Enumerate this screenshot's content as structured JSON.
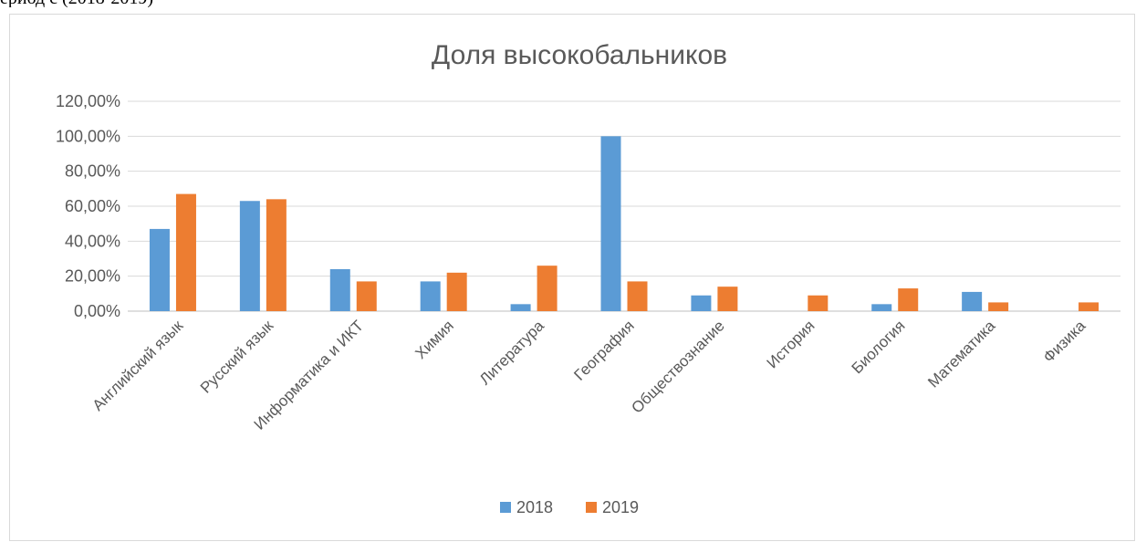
{
  "header_fragment": "ериод с (2018-2019)",
  "chart_data": {
    "type": "bar",
    "title": "Доля высокобальников",
    "xlabel": "",
    "ylabel": "",
    "categories": [
      "Английский язык",
      "Русский язык",
      "Информатика и ИКТ",
      "Химия",
      "Литература",
      "География",
      "Обществознание",
      "История",
      "Биология",
      "Математика",
      "Физика"
    ],
    "series": [
      {
        "name": "2018",
        "color": "#5b9bd5",
        "values": [
          47,
          63,
          24,
          17,
          4,
          100,
          9,
          0,
          4,
          11,
          0
        ]
      },
      {
        "name": "2019",
        "color": "#ed7d31",
        "values": [
          67,
          64,
          17,
          22,
          26,
          17,
          14,
          9,
          13,
          5,
          5
        ]
      }
    ],
    "yticks": [
      "0,00%",
      "20,00%",
      "40,00%",
      "60,00%",
      "80,00%",
      "100,00%",
      "120,00%"
    ],
    "ylim": [
      0,
      120
    ],
    "grid": true,
    "legend": "bottom"
  }
}
